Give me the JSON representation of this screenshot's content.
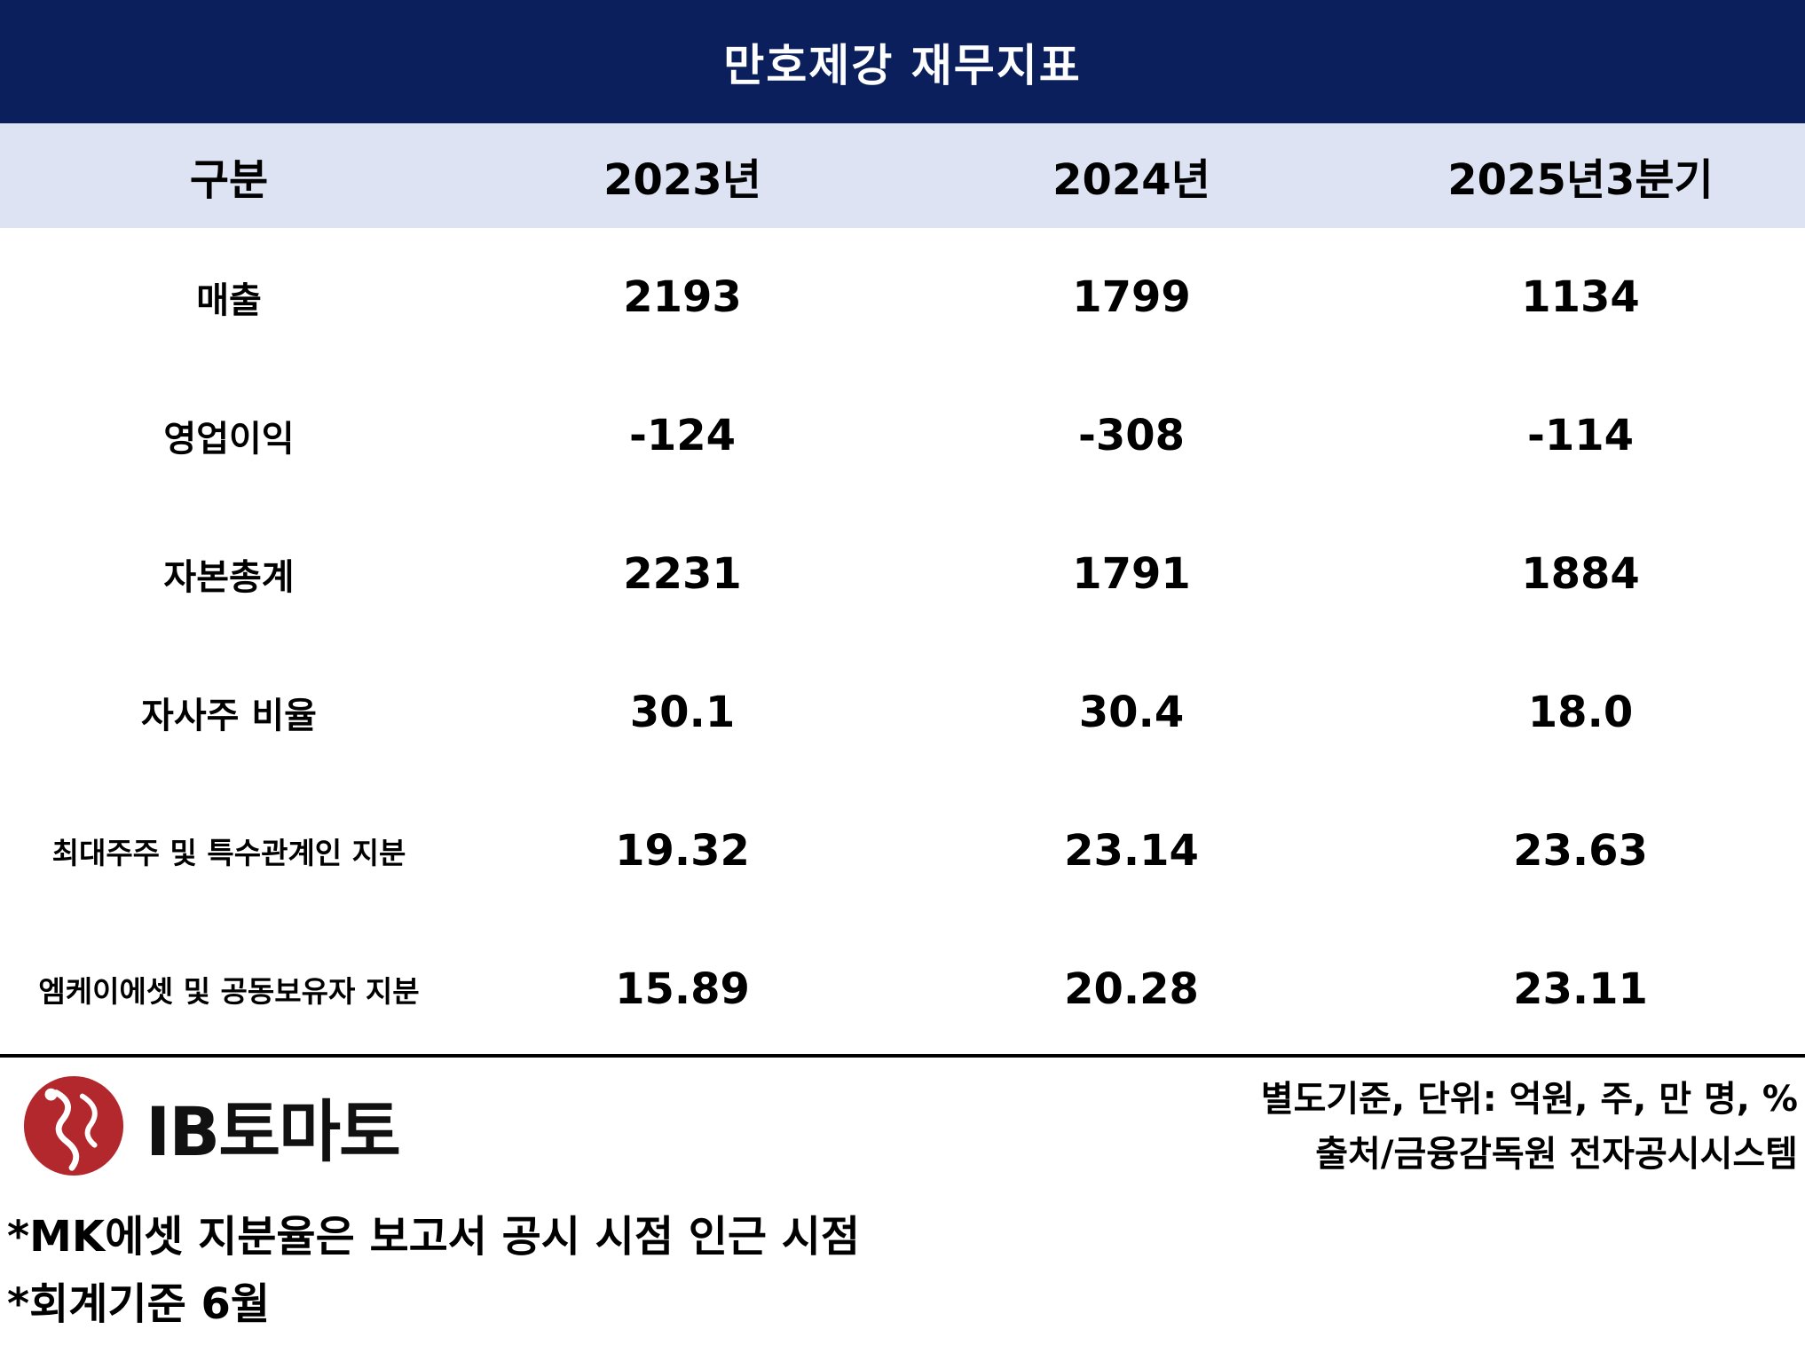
{
  "title": "만호제강 재무지표",
  "columns": [
    "구분",
    "2023년",
    "2024년",
    "2025년3분기"
  ],
  "rows": [
    {
      "label": "매출",
      "values": [
        "2193",
        "1799",
        "1134"
      ]
    },
    {
      "label": "영업이익",
      "values": [
        "-124",
        "-308",
        "-114"
      ]
    },
    {
      "label": "자본총계",
      "values": [
        "2231",
        "1791",
        "1884"
      ]
    },
    {
      "label": "자사주 비율",
      "values": [
        "30.1",
        "30.4",
        "18.0"
      ]
    },
    {
      "label": "최대주주 및 특수관계인 지분",
      "values": [
        "19.32",
        "23.14",
        "23.63"
      ]
    },
    {
      "label": "엠케이에셋 및 공동보유자 지분",
      "values": [
        "15.89",
        "20.28",
        "23.11"
      ]
    }
  ],
  "logo": {
    "text": "IB토마토",
    "icon": "tomato-logo-icon"
  },
  "basis_note": "별도기준, 단위: 억원, 주, 만 명, %",
  "source_note": "출처/금융감독원 전자공시시스템",
  "footnotes": [
    "*MK에셋 지분율은 보고서 공시 시점 인근 시점",
    "*회계기준 6월"
  ],
  "colors": {
    "title_bg": "#0b1f5c",
    "header_bg": "#dde3f3",
    "logo_red": "#b3282d"
  }
}
